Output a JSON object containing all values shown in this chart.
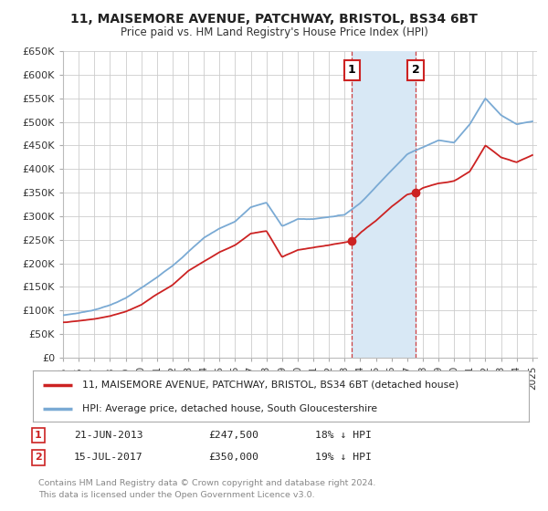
{
  "title_line1": "11, MAISEMORE AVENUE, PATCHWAY, BRISTOL, BS34 6BT",
  "title_line2": "Price paid vs. HM Land Registry's House Price Index (HPI)",
  "ylim": [
    0,
    650000
  ],
  "yticks": [
    0,
    50000,
    100000,
    150000,
    200000,
    250000,
    300000,
    350000,
    400000,
    450000,
    500000,
    550000,
    600000,
    650000
  ],
  "ytick_labels": [
    "£0",
    "£50K",
    "£100K",
    "£150K",
    "£200K",
    "£250K",
    "£300K",
    "£350K",
    "£400K",
    "£450K",
    "£500K",
    "£550K",
    "£600K",
    "£650K"
  ],
  "hpi_color": "#7aaad4",
  "price_color": "#cc2222",
  "purchase1_date": 2013.47,
  "purchase1_price": 247500,
  "purchase2_date": 2017.54,
  "purchase2_price": 350000,
  "legend_line1": "11, MAISEMORE AVENUE, PATCHWAY, BRISTOL, BS34 6BT (detached house)",
  "legend_line2": "HPI: Average price, detached house, South Gloucestershire",
  "footer": "Contains HM Land Registry data © Crown copyright and database right 2024.\nThis data is licensed under the Open Government Licence v3.0.",
  "bg_color": "#ffffff",
  "grid_color": "#cccccc",
  "shade_color": "#d8e8f5",
  "hpi_knots_x": [
    1995,
    1996,
    1997,
    1998,
    1999,
    2000,
    2001,
    2002,
    2003,
    2004,
    2005,
    2006,
    2007,
    2008,
    2009,
    2010,
    2011,
    2012,
    2013,
    2014,
    2015,
    2016,
    2017,
    2018,
    2019,
    2020,
    2021,
    2022,
    2023,
    2024,
    2025
  ],
  "hpi_knots_y": [
    90000,
    95000,
    102000,
    112000,
    127000,
    148000,
    170000,
    195000,
    225000,
    255000,
    275000,
    290000,
    320000,
    330000,
    280000,
    295000,
    295000,
    300000,
    305000,
    330000,
    365000,
    400000,
    435000,
    450000,
    465000,
    460000,
    500000,
    555000,
    520000,
    500000,
    505000
  ],
  "red_knots_x": [
    1995,
    1996,
    1997,
    1998,
    1999,
    2000,
    2001,
    2002,
    2003,
    2004,
    2005,
    2006,
    2007,
    2008,
    2009,
    2010,
    2011,
    2012,
    2013,
    2013.47,
    2014,
    2015,
    2016,
    2017,
    2017.54,
    2018,
    2019,
    2020,
    2021,
    2022,
    2023,
    2024,
    2025
  ],
  "red_knots_y": [
    75000,
    78000,
    82000,
    88000,
    98000,
    113000,
    135000,
    155000,
    185000,
    205000,
    225000,
    240000,
    265000,
    270000,
    215000,
    230000,
    235000,
    240000,
    245000,
    247500,
    265000,
    290000,
    320000,
    345000,
    350000,
    360000,
    370000,
    375000,
    395000,
    450000,
    425000,
    415000,
    430000
  ]
}
